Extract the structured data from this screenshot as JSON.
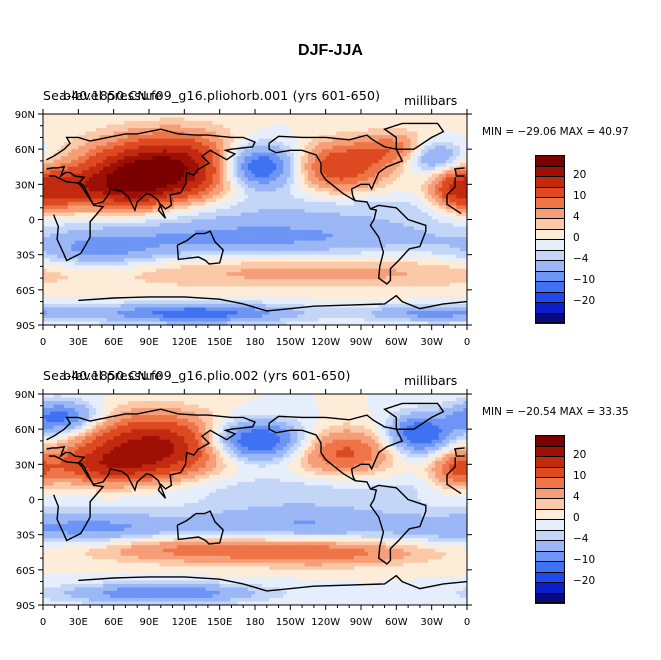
{
  "page": {
    "title": "DJF-JJA"
  },
  "chart_data": [
    {
      "type": "heatmap",
      "case": "b40.1850.CN.f09_g16.pliohorb.001",
      "variable": "Sea-level pressure",
      "period": "(yrs 601-650)",
      "case_label_overlay": "b40.1850.CN.f09_g16.pliohorb.001 (yrs 601-650)",
      "case_label_base": "Sea-level pressure",
      "units": "millibars",
      "min": -29.06,
      "max": 40.97,
      "minmax_text": "MIN = −29.06 MAX =  40.97",
      "x_ticks": [
        "0",
        "30E",
        "60E",
        "90E",
        "120E",
        "150E",
        "180",
        "150W",
        "120W",
        "90W",
        "60W",
        "30W",
        "0"
      ],
      "y_ticks": [
        "90N",
        "60N",
        "30N",
        "0",
        "30S",
        "60S",
        "90S"
      ],
      "xlim": [
        0,
        360
      ],
      "ylim": [
        -90,
        90
      ],
      "colorbar": {
        "levels": [
          -25,
          -20,
          -15,
          -10,
          -7,
          -4,
          -2,
          0,
          2,
          4,
          7,
          10,
          15,
          20,
          25
        ],
        "tick_labels": [
          "20",
          "10",
          "4",
          "0",
          "−4",
          "−10",
          "−20"
        ],
        "colors": [
          "#0a0a80",
          "#0b1ecc",
          "#1d4af0",
          "#3f72f3",
          "#6c95f5",
          "#9bb7f5",
          "#c4d6f7",
          "#e6eefb",
          "#fdecd8",
          "#fbc8a8",
          "#f59e78",
          "#ee7548",
          "#dd4a22",
          "#c22a10",
          "#9e1005",
          "#7a0000"
        ]
      },
      "features": [
        {
          "lon": 110,
          "lat": 45,
          "amp": 26,
          "sx": 45,
          "sy": 18
        },
        {
          "lon": 70,
          "lat": 28,
          "amp": 18,
          "sx": 30,
          "sy": 14
        },
        {
          "lon": 15,
          "lat": 25,
          "amp": 12,
          "sx": 20,
          "sy": 12
        },
        {
          "lon": 250,
          "lat": 45,
          "amp": 14,
          "sx": 28,
          "sy": 14
        },
        {
          "lon": 305,
          "lat": 60,
          "amp": 10,
          "sx": 25,
          "sy": 10
        },
        {
          "lon": 350,
          "lat": 25,
          "amp": 12,
          "sx": 15,
          "sy": 12
        },
        {
          "lon": 180,
          "lat": 45,
          "amp": -20,
          "sx": 28,
          "sy": 14
        },
        {
          "lon": 330,
          "lat": 55,
          "amp": -12,
          "sx": 18,
          "sy": 10
        },
        {
          "lon": 180,
          "lat": -15,
          "amp": -8,
          "sx": 120,
          "sy": 12
        },
        {
          "lon": 45,
          "lat": -28,
          "amp": -6,
          "sx": 40,
          "sy": 10
        },
        {
          "lon": 230,
          "lat": -45,
          "amp": 5,
          "sx": 140,
          "sy": 10
        },
        {
          "lon": 130,
          "lat": -80,
          "amp": -12,
          "sx": 60,
          "sy": 6
        },
        {
          "lon": 330,
          "lat": -80,
          "amp": -8,
          "sx": 40,
          "sy": 5
        },
        {
          "lon": 200,
          "lat": 10,
          "amp": -3,
          "sx": 160,
          "sy": 10
        }
      ]
    },
    {
      "type": "heatmap",
      "case": "b40.1850.CN.f09_g16.plio.002",
      "variable": "Sea-level pressure",
      "period": "(yrs 601-650)",
      "case_label_overlay": "b40.1850.CN.f09_g16.plio.002 (yrs 601-650)",
      "case_label_base": "Sea-level pressure",
      "units": "millibars",
      "min": -20.54,
      "max": 33.35,
      "minmax_text": "MIN = −20.54 MAX =  33.35",
      "x_ticks": [
        "0",
        "30E",
        "60E",
        "90E",
        "120E",
        "150E",
        "180",
        "150W",
        "120W",
        "90W",
        "60W",
        "30W",
        "0"
      ],
      "y_ticks": [
        "90N",
        "60N",
        "30N",
        "0",
        "30S",
        "60S",
        "90S"
      ],
      "xlim": [
        0,
        360
      ],
      "ylim": [
        -90,
        90
      ],
      "colorbar": {
        "levels": [
          -25,
          -20,
          -15,
          -10,
          -7,
          -4,
          -2,
          0,
          2,
          4,
          7,
          10,
          15,
          20,
          25
        ],
        "tick_labels": [
          "20",
          "10",
          "4",
          "0",
          "−4",
          "−10",
          "−20"
        ],
        "colors": [
          "#0a0a80",
          "#0b1ecc",
          "#1d4af0",
          "#3f72f3",
          "#6c95f5",
          "#9bb7f5",
          "#c4d6f7",
          "#e6eefb",
          "#fdecd8",
          "#fbc8a8",
          "#f59e78",
          "#ee7548",
          "#dd4a22",
          "#c22a10",
          "#9e1005",
          "#7a0000"
        ]
      },
      "features": [
        {
          "lon": 95,
          "lat": 45,
          "amp": 22,
          "sx": 40,
          "sy": 18
        },
        {
          "lon": 50,
          "lat": 28,
          "amp": 12,
          "sx": 30,
          "sy": 12
        },
        {
          "lon": 255,
          "lat": 40,
          "amp": 11,
          "sx": 30,
          "sy": 14
        },
        {
          "lon": 350,
          "lat": 25,
          "amp": 10,
          "sx": 15,
          "sy": 12
        },
        {
          "lon": 180,
          "lat": 50,
          "amp": -16,
          "sx": 30,
          "sy": 12
        },
        {
          "lon": 15,
          "lat": 70,
          "amp": -12,
          "sx": 22,
          "sy": 10
        },
        {
          "lon": 320,
          "lat": 55,
          "amp": -14,
          "sx": 20,
          "sy": 12
        },
        {
          "lon": 40,
          "lat": -25,
          "amp": -8,
          "sx": 60,
          "sy": 10
        },
        {
          "lon": 220,
          "lat": -20,
          "amp": -7,
          "sx": 70,
          "sy": 12
        },
        {
          "lon": 120,
          "lat": -42,
          "amp": 8,
          "sx": 60,
          "sy": 8
        },
        {
          "lon": 240,
          "lat": -45,
          "amp": 9,
          "sx": 60,
          "sy": 8
        },
        {
          "lon": 100,
          "lat": -80,
          "amp": -10,
          "sx": 60,
          "sy": 6
        },
        {
          "lon": 200,
          "lat": 10,
          "amp": -3,
          "sx": 160,
          "sy": 10
        }
      ]
    }
  ]
}
